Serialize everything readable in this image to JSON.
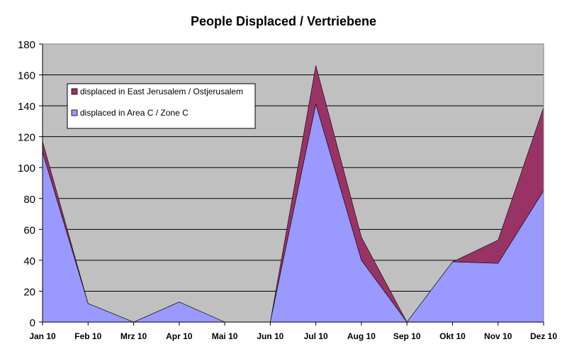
{
  "chart_data": {
    "type": "area",
    "stacked": true,
    "title": "People Displaced / Vertriebene",
    "xlabel": "",
    "ylabel": "",
    "categories": [
      "Jan 10",
      "Feb 10",
      "Mrz 10",
      "Apr 10",
      "Mai 10",
      "Jun 10",
      "Jul 10",
      "Aug 10",
      "Sep 10",
      "Okt 10",
      "Nov 10",
      "Dez 10"
    ],
    "series": [
      {
        "name": "displaced in Area C / Zone C",
        "color": "#9999ff",
        "values": [
          110,
          12,
          0,
          13,
          0,
          0,
          141,
          40,
          0,
          39,
          38,
          85
        ]
      },
      {
        "name": "displaced in East Jerusalem / Ostjerusalem",
        "color": "#993366",
        "values": [
          7,
          0,
          0,
          0,
          0,
          0,
          25,
          15,
          0,
          0,
          15,
          54
        ]
      }
    ],
    "ylim": [
      0,
      180
    ],
    "yticks": [
      0,
      20,
      40,
      60,
      80,
      100,
      120,
      140,
      160,
      180
    ],
    "grid": true,
    "plot_background": "#c0c0c0",
    "legend_position": "top-left",
    "legend_order": [
      "displaced in East Jerusalem / Ostjerusalem",
      "displaced in Area C / Zone C"
    ]
  }
}
